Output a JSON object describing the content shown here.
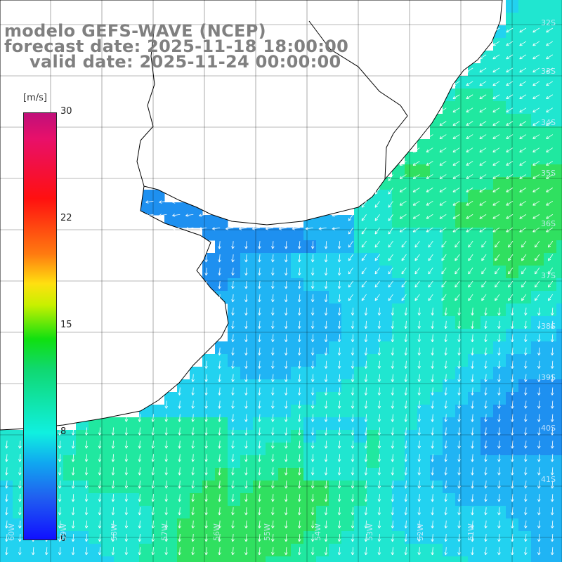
{
  "title": {
    "model": "modelo GEFS-WAVE (NCEP)",
    "forecast": "forecast date: 2025-11-18 18:00:00",
    "valid": "valid date: 2025-11-24 00:00:00"
  },
  "colorbar": {
    "unit": "[m/s]",
    "range": [
      0,
      30
    ],
    "ticks": [
      "30",
      "22",
      "15",
      "8",
      "0"
    ],
    "colors": [
      "#1010ff",
      "#10f0e0",
      "#10e010",
      "#ffe010",
      "#ff1010",
      "#c0107a"
    ]
  },
  "lat_labels": [
    "32S",
    "33S",
    "34S",
    "35S",
    "36S",
    "37S",
    "38S",
    "39S",
    "40S",
    "41S"
  ],
  "lon_labels": [
    "60W",
    "59W",
    "58W",
    "57W",
    "56W",
    "55W",
    "54W",
    "53W",
    "52W",
    "51W"
  ],
  "map": {
    "land_color": "#ffffff",
    "coast_color": "#000000",
    "grid_color": "#000000",
    "arrow_color": "#ffffff",
    "ocean_palette": [
      "#1e90f0",
      "#20b4f4",
      "#22d2f0",
      "#20e6d0",
      "#20e8a0",
      "#30e060"
    ]
  }
}
